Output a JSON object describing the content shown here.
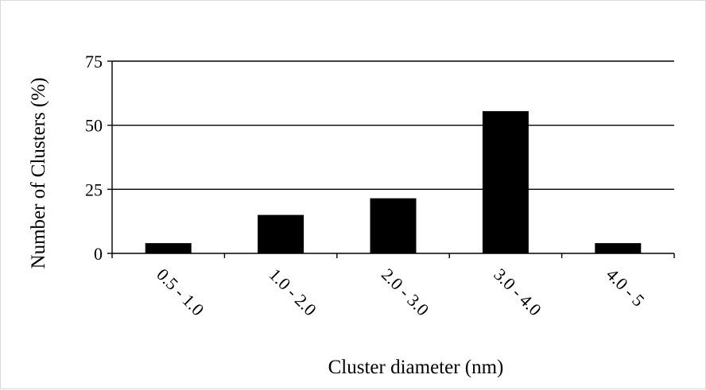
{
  "chart_data": {
    "type": "bar",
    "categories": [
      "0.5 - 1.0",
      "1.0 - 2.0",
      "2.0 - 3.0",
      "3.0 - 4.0",
      "4.0 - 5"
    ],
    "values": [
      4,
      15,
      21.5,
      55.5,
      4
    ],
    "xlabel": "Cluster diameter (nm)",
    "ylabel": "Number of Clusters (%)",
    "ylim": [
      0,
      75
    ],
    "yticks": [
      0,
      25,
      50,
      75
    ],
    "grid": "horizontal",
    "bar_color": "#000000",
    "legend": "none"
  }
}
